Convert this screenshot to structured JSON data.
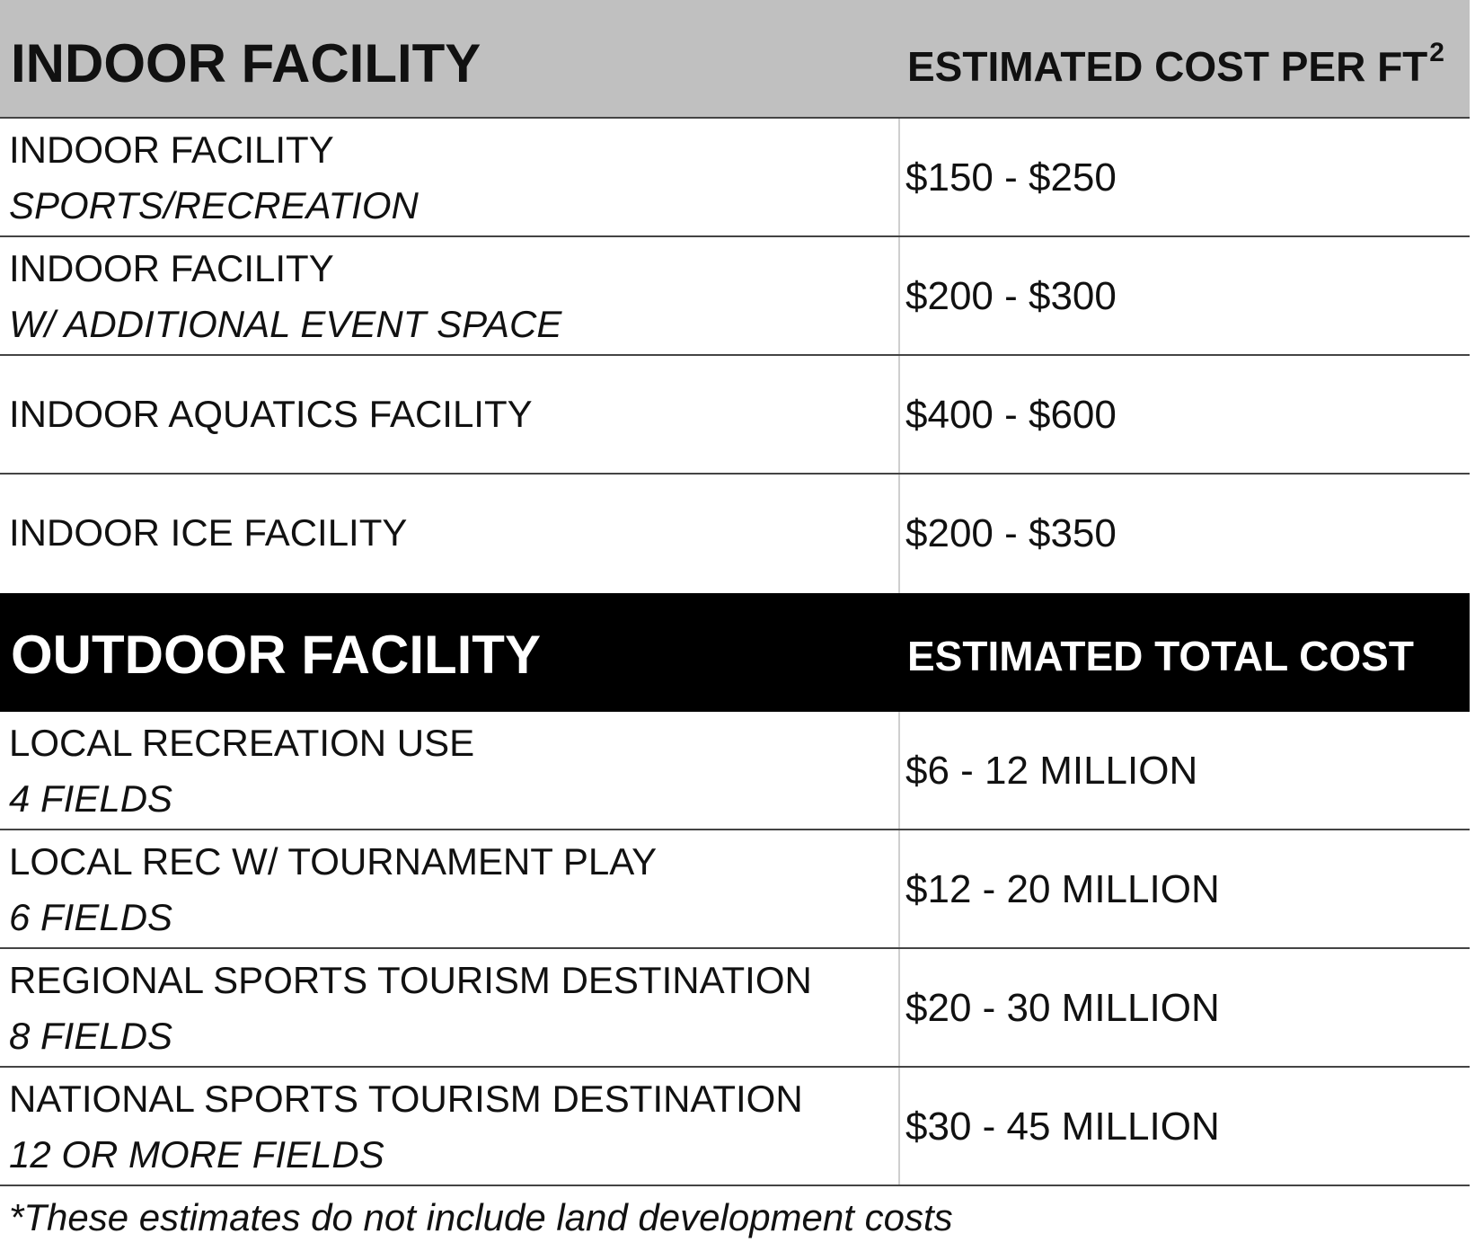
{
  "indoor": {
    "header_left": "INDOOR FACILITY",
    "header_right": "ESTIMATED COST PER FT",
    "header_right_sup": "2",
    "rows": [
      {
        "label": "INDOOR FACILITY",
        "sub": "SPORTS/RECREATION",
        "value": "$150 - $250"
      },
      {
        "label": "INDOOR FACILITY",
        "sub": "W/ ADDITIONAL EVENT SPACE",
        "value": "$200 - $300"
      },
      {
        "label": "INDOOR AQUATICS FACILITY",
        "value": "$400 - $600"
      },
      {
        "label": "INDOOR ICE FACILITY",
        "value": "$200 - $350"
      }
    ]
  },
  "outdoor": {
    "header_left": "OUTDOOR FACILITY",
    "header_right": "ESTIMATED TOTAL COST",
    "rows": [
      {
        "label": "LOCAL RECREATION USE",
        "sub": "4 FIELDS",
        "value": "$6 - 12 MILLION"
      },
      {
        "label": "LOCAL REC W/ TOURNAMENT PLAY",
        "sub": "6 FIELDS",
        "value": "$12 - 20 MILLION"
      },
      {
        "label": "REGIONAL SPORTS TOURISM DESTINATION",
        "sub": "8 FIELDS",
        "value": "$20 - 30 MILLION"
      },
      {
        "label": "NATIONAL SPORTS TOURISM DESTINATION",
        "sub": "12 OR MORE FIELDS",
        "value": "$30 - 45 MILLION"
      }
    ]
  },
  "footnote": "*These estimates do not include land development costs",
  "colors": {
    "indoor_header_bg": "#c0c0c0",
    "outdoor_header_bg": "#000000",
    "outdoor_header_text": "#ffffff"
  }
}
